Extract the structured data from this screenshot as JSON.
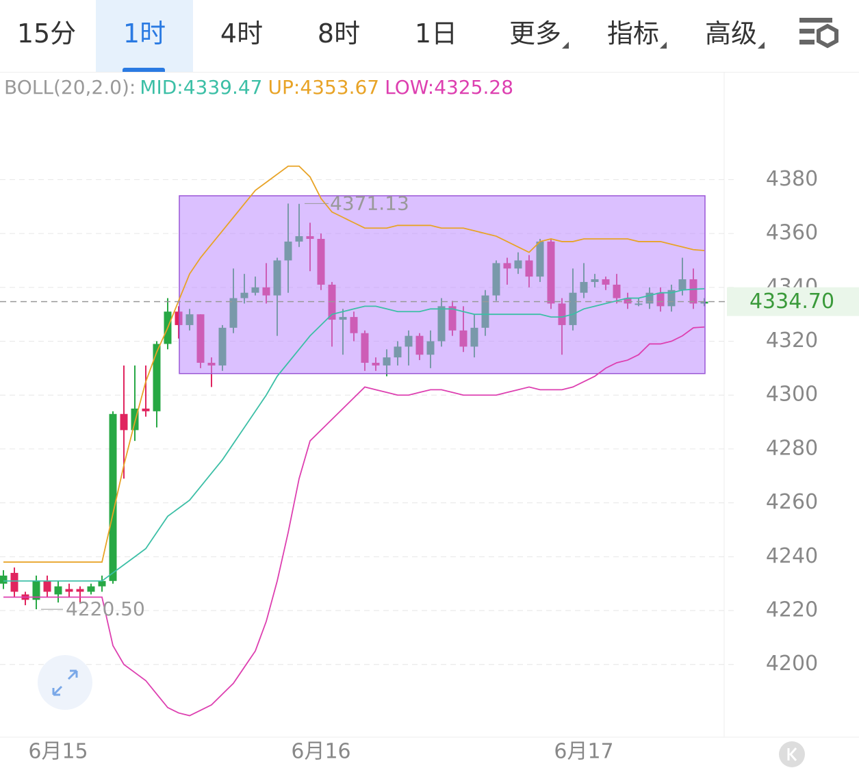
{
  "tabs": {
    "items": [
      "15分",
      "1时",
      "4时",
      "8时",
      "1日",
      "更多",
      "指标",
      "高级"
    ],
    "active": 1
  },
  "chart_data": {
    "type": "candlestick",
    "categories": [
      null,
      null,
      null,
      null,
      null,
      "6月15",
      null,
      null,
      null,
      null,
      null,
      null,
      null,
      null,
      null,
      null,
      null,
      null,
      null,
      null,
      null,
      null,
      null,
      null,
      null,
      null,
      null,
      null,
      null,
      "6月16",
      null,
      null,
      null,
      null,
      null,
      null,
      null,
      null,
      null,
      null,
      null,
      null,
      null,
      null,
      null,
      null,
      null,
      null,
      null,
      null,
      null,
      null,
      null,
      "6月17",
      null,
      null,
      null,
      null,
      null,
      null,
      null,
      null,
      null,
      null,
      null
    ],
    "open": [
      4230,
      4234,
      4226,
      4224,
      4231,
      4226,
      4228,
      4228,
      4227,
      4229,
      4231,
      4293,
      4287,
      4295,
      4294,
      4319,
      4331,
      4326,
      4330,
      4312,
      4311,
      4325,
      4336,
      4338,
      4340,
      4337,
      4350,
      4357,
      4359,
      4358,
      4341,
      4328,
      4329,
      4323,
      4312,
      4311,
      4314,
      4318,
      4322,
      4315,
      4320,
      4333,
      4324,
      4318,
      4325,
      4337,
      4349,
      4347,
      4350,
      4344,
      4357,
      4334,
      4326,
      4338,
      4342,
      4343,
      4341,
      4336,
      4334,
      4334,
      4338,
      4333,
      4339,
      4343,
      4334
    ],
    "high": [
      4235,
      4236,
      4227,
      4233,
      4233,
      4231,
      4230,
      4229,
      4230,
      4233,
      4294,
      4311,
      4311,
      4311,
      4320,
      4336,
      4333,
      4332,
      4330,
      4314,
      4326,
      4347,
      4345,
      4344,
      4349,
      4351,
      4371.13,
      4371,
      4364,
      4360,
      4342,
      4332,
      4331,
      4324,
      4314,
      4317,
      4320,
      4324,
      4323,
      4324,
      4336,
      4335,
      4333,
      4330,
      4339,
      4350,
      4351,
      4353,
      4352,
      4358,
      4358,
      4336,
      4347,
      4349,
      4345,
      4344,
      4345,
      4338,
      4336,
      4340,
      4340,
      4341,
      4351,
      4347,
      4336
    ],
    "low": [
      4228,
      4225,
      4222,
      4220.5,
      4225,
      4223,
      4225,
      4223,
      4226,
      4227,
      4230,
      4269,
      4283,
      4292,
      4288,
      4317,
      4321,
      4324,
      4310,
      4303,
      4309,
      4323,
      4334,
      4337,
      4334,
      4322,
      4338,
      4355,
      4346,
      4339,
      4318,
      4315,
      4320,
      4309,
      4309,
      4307,
      4311,
      4311,
      4313,
      4310,
      4318,
      4322,
      4316,
      4314,
      4322,
      4335,
      4341,
      4345,
      4340,
      4342,
      4332,
      4315,
      4324,
      4336,
      4340,
      4339,
      4334,
      4332,
      4333,
      4332,
      4331,
      4331,
      4337,
      4332,
      4333
    ],
    "close": [
      4233,
      4227,
      4224,
      4231,
      4227,
      4229,
      4227,
      4227,
      4229,
      4231,
      4293,
      4287,
      4295,
      4294,
      4319,
      4331,
      4326,
      4330,
      4312,
      4311,
      4325,
      4336,
      4338,
      4340,
      4337,
      4350,
      4357,
      4359,
      4358,
      4341,
      4328,
      4329,
      4323,
      4312,
      4311,
      4314,
      4318,
      4322,
      4315,
      4320,
      4333,
      4324,
      4318,
      4325,
      4337,
      4349,
      4347,
      4350,
      4344,
      4357,
      4334,
      4326,
      4338,
      4342,
      4343,
      4341,
      4336,
      4334,
      4334,
      4338,
      4333,
      4339,
      4343,
      4334,
      4334.7
    ],
    "up_color": "#27a844",
    "down_color": "#e0245e",
    "boll_label": "BOLL(20,2.0):",
    "series": [
      {
        "label": "MID:4339.47",
        "color": "#3cbfa6",
        "values": [
          4231,
          4231,
          4231,
          4231,
          4231,
          4231,
          4231,
          4231,
          4231,
          4231,
          4234,
          4237,
          4240,
          4243,
          4249,
          4255,
          4258,
          4261,
          4266,
          4271,
          4276,
          4282,
          4288,
          4294,
          4300,
          4307,
          4312,
          4317,
          4322,
          4326,
          4330,
          4331,
          4332,
          4333,
          4333,
          4332,
          4331,
          4331,
          4331,
          4332,
          4332,
          4332,
          4331,
          4330,
          4330,
          4330,
          4330,
          4330,
          4330,
          4330,
          4329,
          4329,
          4330,
          4332,
          4333,
          4334,
          4335,
          4336,
          4336,
          4337,
          4338,
          4338,
          4339,
          4339.3,
          4339.47
        ]
      },
      {
        "label": "UP:4353.67",
        "color": "#e8a326",
        "values": [
          4238,
          4238,
          4238,
          4238,
          4238,
          4238,
          4238,
          4238,
          4238,
          4238,
          4256,
          4274,
          4290,
          4305,
          4316,
          4325,
          4335,
          4345,
          4351,
          4356,
          4361,
          4366,
          4371,
          4376,
          4379,
          4382,
          4385,
          4385,
          4381,
          4373,
          4368,
          4366,
          4364,
          4362,
          4362,
          4362,
          4363,
          4363,
          4363,
          4363,
          4362,
          4362,
          4362,
          4361,
          4360,
          4359,
          4357,
          4355,
          4353,
          4357,
          4358,
          4357,
          4357,
          4358,
          4358,
          4358,
          4358,
          4358,
          4357,
          4357,
          4357,
          4356,
          4355,
          4354,
          4353.67
        ]
      },
      {
        "label": "LOW:4325.28",
        "color": "#dd3fb0",
        "values": [
          4225,
          4225,
          4225,
          4225,
          4225,
          4225,
          4225,
          4225,
          4225,
          4225,
          4207,
          4200,
          4197,
          4194,
          4189,
          4184,
          4182,
          4181,
          4183,
          4185,
          4189,
          4193,
          4199,
          4205,
          4216,
          4231,
          4249,
          4269,
          4283,
          4287,
          4291,
          4295,
          4299,
          4303,
          4302,
          4301,
          4300,
          4300,
          4301,
          4302,
          4302,
          4301,
          4300,
          4300,
          4300,
          4300,
          4301,
          4302,
          4303,
          4302,
          4302,
          4302,
          4303,
          4305,
          4307,
          4310,
          4312,
          4313,
          4315,
          4319,
          4319,
          4320,
          4322,
          4325,
          4325.28
        ]
      }
    ],
    "box": {
      "high": 4374,
      "low": 4308,
      "color": "rgba(190,140,255,0.55)"
    },
    "annotations": [
      {
        "value": 4371.13,
        "label": "4371.13"
      },
      {
        "value": 4220.5,
        "label": "4220.50"
      }
    ],
    "last_price": {
      "value": 4334.7,
      "label": "4334.70"
    },
    "ylim": [
      4173,
      4420
    ],
    "yticks": [
      4200,
      4220,
      4240,
      4260,
      4280,
      4300,
      4320,
      4340,
      4360,
      4380
    ],
    "grid": true
  }
}
